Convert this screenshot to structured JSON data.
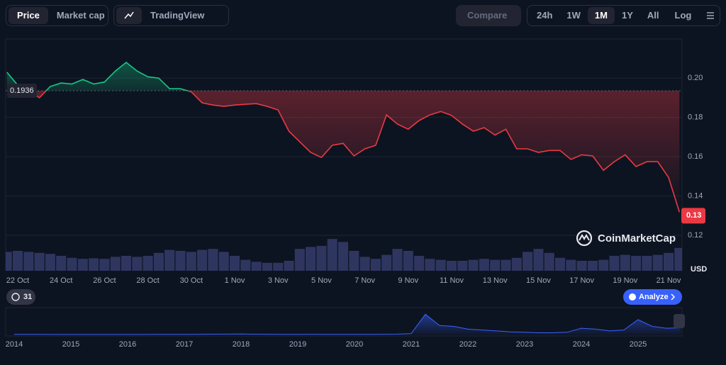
{
  "toolbar": {
    "price": "Price",
    "market_cap": "Market cap",
    "tradingview": "TradingView",
    "compare": "Compare",
    "ranges": [
      "24h",
      "1W",
      "1M",
      "1Y",
      "All"
    ],
    "log": "Log"
  },
  "watermark": "CoinMarketCap",
  "currency": "USD",
  "comments": "31",
  "analyze": "Analyze",
  "chart_data": [
    {
      "type": "line",
      "categories": [
        null,
        "22 Oct",
        null,
        null,
        null,
        "24 Oct",
        null,
        null,
        null,
        "26 Oct",
        null,
        null,
        null,
        "28 Oct",
        null,
        null,
        null,
        "30 Oct",
        null,
        null,
        null,
        "1 Nov",
        null,
        null,
        null,
        "3 Nov",
        null,
        null,
        null,
        "5 Nov",
        null,
        null,
        null,
        "7 Nov",
        null,
        null,
        null,
        "9 Nov",
        null,
        null,
        null,
        "11 Nov",
        null,
        null,
        null,
        "13 Nov",
        null,
        null,
        null,
        "15 Nov",
        null,
        null,
        null,
        "17 Nov",
        null,
        null,
        null,
        "19 Nov",
        null,
        null,
        null,
        "21 Nov",
        null
      ],
      "values": [
        0.203,
        0.1964,
        0.1935,
        0.19,
        0.1957,
        0.1975,
        0.197,
        0.1993,
        0.197,
        0.198,
        0.2036,
        0.208,
        0.2036,
        0.2007,
        0.2,
        0.1946,
        0.1946,
        0.193,
        0.1874,
        0.1863,
        0.1856,
        0.1863,
        0.1867,
        0.187,
        0.1856,
        0.1838,
        0.173,
        0.1676,
        0.1622,
        0.1596,
        0.1658,
        0.1668,
        0.1604,
        0.164,
        0.1658,
        0.1813,
        0.1766,
        0.174,
        0.1784,
        0.1813,
        0.183,
        0.181,
        0.1766,
        0.173,
        0.1748,
        0.171,
        0.174,
        0.164,
        0.164,
        0.1622,
        0.1632,
        0.1632,
        0.1586,
        0.161,
        0.1604,
        0.1531,
        0.1575,
        0.161,
        0.155,
        0.1575,
        0.1575,
        0.1495,
        0.1318
      ],
      "up_color": "#16c784",
      "down_color": "#ea3943",
      "baseline": {
        "value": 0.1936,
        "label": "0.1936"
      },
      "price_tag": {
        "value": 0.13,
        "label": "0.13"
      },
      "ylim": [
        0.102,
        0.2199
      ],
      "yticks": [
        0.12,
        0.14,
        0.16,
        0.18,
        {
          "value": 0.2,
          "label": "0.20"
        }
      ],
      "grid": true
    },
    {
      "type": "bar",
      "color": "#2e3660",
      "ylim": [
        0,
        100
      ],
      "values": [
        38,
        40,
        38,
        36,
        34,
        30,
        26,
        24,
        25,
        24,
        28,
        30,
        28,
        30,
        36,
        42,
        40,
        38,
        42,
        44,
        38,
        30,
        22,
        18,
        16,
        16,
        20,
        44,
        48,
        50,
        64,
        58,
        40,
        28,
        24,
        32,
        44,
        40,
        30,
        24,
        22,
        20,
        20,
        22,
        24,
        22,
        22,
        26,
        38,
        44,
        36,
        26,
        22,
        20,
        20,
        22,
        30,
        32,
        30,
        30,
        32,
        36,
        46
      ]
    },
    {
      "type": "line",
      "color": "#3861fb",
      "ylim": [
        0,
        0.55
      ],
      "categories": [
        "2014",
        null,
        null,
        null,
        "2015",
        null,
        null,
        null,
        "2016",
        null,
        null,
        null,
        "2017",
        null,
        null,
        null,
        "2018",
        null,
        null,
        null,
        "2019",
        null,
        null,
        null,
        "2020",
        null,
        null,
        null,
        "2021",
        null,
        null,
        null,
        "2022",
        null,
        null,
        null,
        "2023",
        null,
        null,
        null,
        "2024",
        null,
        null,
        null,
        "2025",
        null,
        null,
        null
      ],
      "values": [
        0.004,
        0.003,
        0.003,
        0.002,
        0.002,
        0.002,
        0.002,
        0.002,
        0.002,
        0.002,
        0.003,
        0.003,
        0.004,
        0.006,
        0.008,
        0.01,
        0.012,
        0.008,
        0.006,
        0.005,
        0.005,
        0.006,
        0.004,
        0.004,
        0.004,
        0.005,
        0.006,
        0.008,
        0.02,
        0.45,
        0.2,
        0.18,
        0.12,
        0.1,
        0.08,
        0.06,
        0.05,
        0.04,
        0.04,
        0.05,
        0.14,
        0.12,
        0.08,
        0.1,
        0.33,
        0.18,
        0.14,
        0.15
      ]
    }
  ]
}
